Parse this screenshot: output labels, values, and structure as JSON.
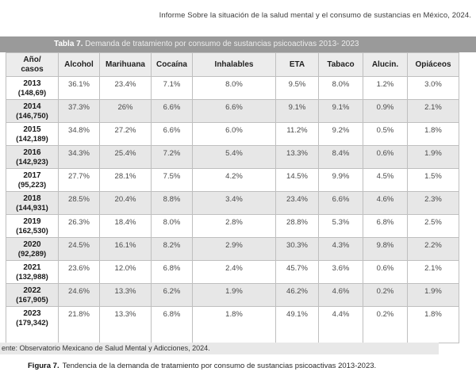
{
  "report_header": "Informe Sobre la situación de la salud mental y el consumo de sustancias en México, 2024.",
  "table_title": {
    "label": "Tabla 7.",
    "text": "Demanda de tratamiento por consumo de sustancias psicoactivas 2013- 2023"
  },
  "table": {
    "year_header": [
      "Año/",
      "casos"
    ],
    "substances": [
      "Alcohol",
      "Marihuana",
      "Cocaína",
      "Inhalables",
      "ETA",
      "Tabaco",
      "Alucin.",
      "Opiáceos"
    ],
    "rows": [
      {
        "year": "2013",
        "cases": "(148,69)",
        "values": [
          "36.1%",
          "23.4%",
          "7.1%",
          "8.0%",
          "9.5%",
          "8.0%",
          "1.2%",
          "3.0%"
        ]
      },
      {
        "year": "2014",
        "cases": "(146,750)",
        "values": [
          "37.3%",
          "26%",
          "6.6%",
          "6.6%",
          "9.1%",
          "9.1%",
          "0.9%",
          "2.1%"
        ]
      },
      {
        "year": "2015",
        "cases": "(142,189)",
        "values": [
          "34.8%",
          "27.2%",
          "6.6%",
          "6.0%",
          "11.2%",
          "9.2%",
          "0.5%",
          "1.8%"
        ]
      },
      {
        "year": "2016",
        "cases": "(142,923)",
        "values": [
          "34.3%",
          "25.4%",
          "7.2%",
          "5.4%",
          "13.3%",
          "8.4%",
          "0.6%",
          "1.9%"
        ]
      },
      {
        "year": "2017",
        "cases": "(95,223)",
        "values": [
          "27.7%",
          "28.1%",
          "7.5%",
          "4.2%",
          "14.5%",
          "9.9%",
          "4.5%",
          "1.5%"
        ]
      },
      {
        "year": "2018",
        "cases": "(144,931)",
        "values": [
          "28.5%",
          "20.4%",
          "8.8%",
          "3.4%",
          "23.4%",
          "6.6%",
          "4.6%",
          "2.3%"
        ]
      },
      {
        "year": "2019",
        "cases": "(162,530)",
        "values": [
          "26.3%",
          "18.4%",
          "8.0%",
          "2.8%",
          "28.8%",
          "5.3%",
          "6.8%",
          "2.5%"
        ]
      },
      {
        "year": "2020",
        "cases": "(92,289)",
        "values": [
          "24.5%",
          "16.1%",
          "8.2%",
          "2.9%",
          "30.3%",
          "4.3%",
          "9.8%",
          "2.2%"
        ]
      },
      {
        "year": "2021",
        "cases": "(132,988)",
        "values": [
          "23.6%",
          "12.0%",
          "6.8%",
          "2.4%",
          "45.7%",
          "3.6%",
          "0.6%",
          "2.1%"
        ]
      },
      {
        "year": "2022",
        "cases": "(167,905)",
        "values": [
          "24.6%",
          "13.3%",
          "6.2%",
          "1.9%",
          "46.2%",
          "4.6%",
          "0.2%",
          "1.9%"
        ]
      },
      {
        "year": "2023",
        "cases": "(179,342)",
        "values": [
          "21.8%",
          "13.3%",
          "6.8%",
          "1.8%",
          "49.1%",
          "4.4%",
          "0.2%",
          "1.8%"
        ]
      }
    ]
  },
  "source_line": "ente: Observatorio Mexicano de Salud Mental y Adicciones, 2024.",
  "figure_caption": {
    "label": "Figura 7.",
    "text": "Tendencia de la demanda de tratamiento por consumo de sustancias psicoactivas 2013-2023."
  },
  "colors": {
    "title_bar_bg": "#9a9a9a",
    "header_row_bg": "#ececec",
    "alt_row_bg": "#e7e7e7",
    "source_bar_bg": "#e8e8e8",
    "border": "#bfbfbf"
  }
}
